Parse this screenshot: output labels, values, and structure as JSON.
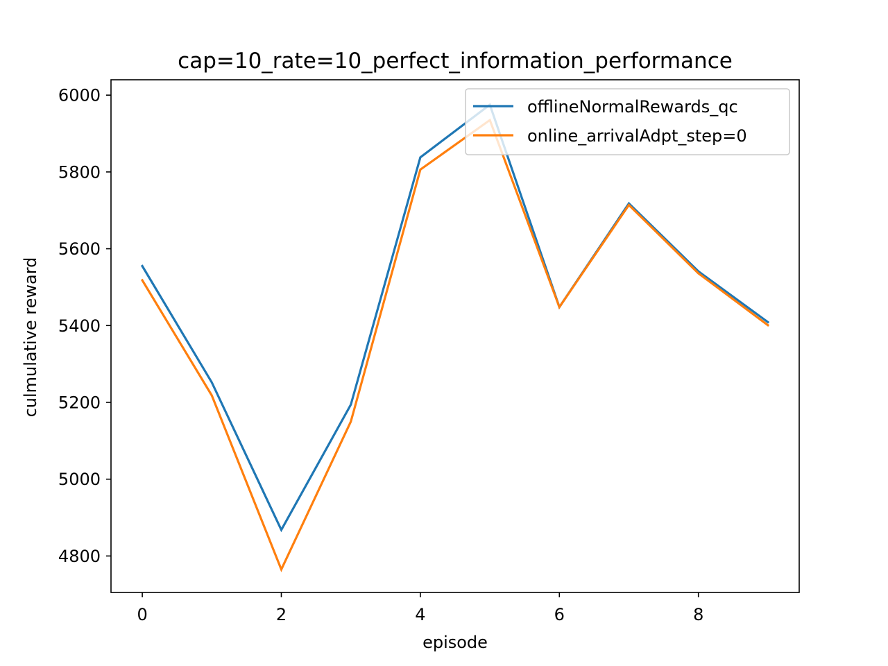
{
  "chart_data": {
    "type": "line",
    "title": "cap=10_rate=10_perfect_information_performance",
    "xlabel": "episode",
    "ylabel": "culmulative reward",
    "xlim": [
      -0.45,
      9.45
    ],
    "ylim": [
      4705,
      6040
    ],
    "xticks": [
      0,
      2,
      4,
      6,
      8
    ],
    "yticks": [
      4800,
      5000,
      5200,
      5400,
      5600,
      5800,
      6000
    ],
    "x": [
      0,
      1,
      2,
      3,
      4,
      5,
      6,
      7,
      8,
      9
    ],
    "grid": false,
    "legend_position": "top-right",
    "series": [
      {
        "name": "offlineNormalRewards_qc",
        "color": "#1f77b4",
        "values": [
          5555,
          5252,
          4868,
          5194,
          5838,
          5975,
          5448,
          5718,
          5541,
          5409
        ]
      },
      {
        "name": "online_arrivalAdpt_step=0",
        "color": "#ff7f0e",
        "values": [
          5518,
          5218,
          4765,
          5150,
          5806,
          5935,
          5448,
          5714,
          5536,
          5401
        ]
      }
    ]
  }
}
